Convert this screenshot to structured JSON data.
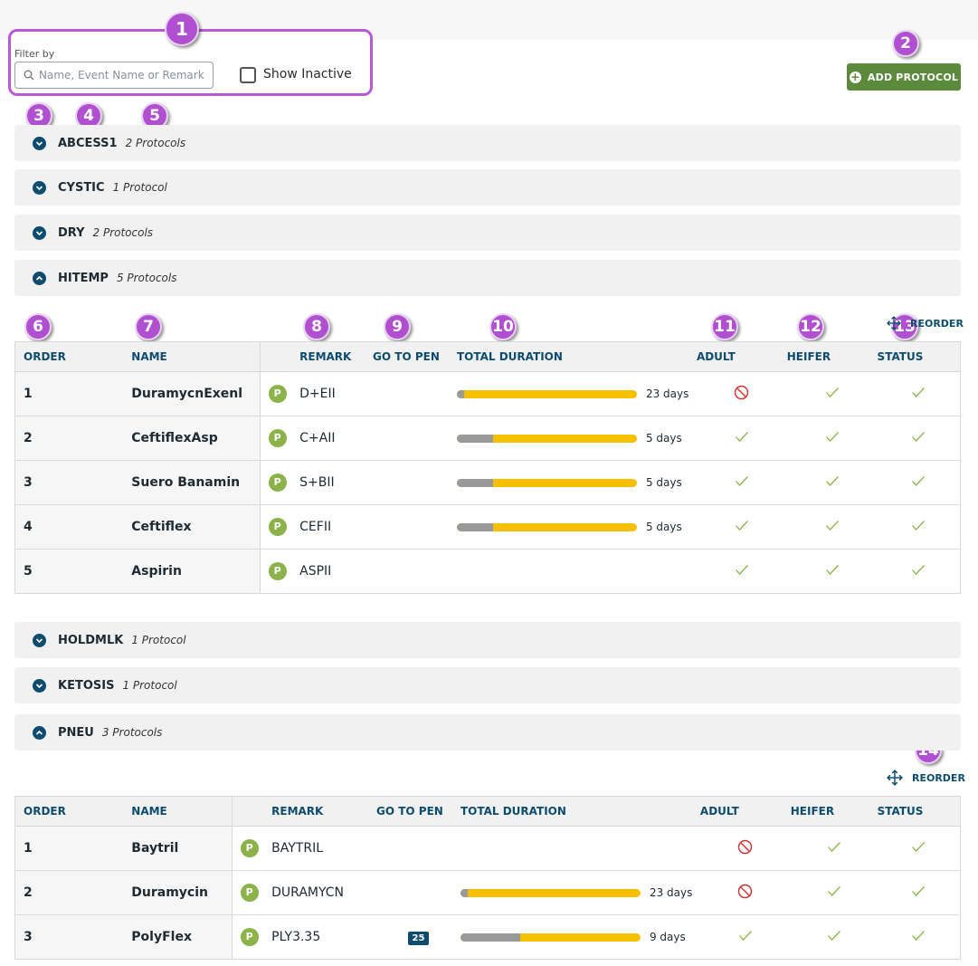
{
  "filter": {
    "label": "Filter by",
    "search_placeholder": "Name, Event Name or Remark",
    "search_value": "",
    "show_inactive_label": "Show Inactive",
    "show_inactive_checked": false
  },
  "add_protocol_label": "ADD PROTOCOL",
  "callouts": [
    "1",
    "2",
    "3",
    "4",
    "5",
    "6",
    "7",
    "8",
    "9",
    "10",
    "11",
    "12",
    "13",
    "14"
  ],
  "groups": [
    {
      "name": "ABCESS1",
      "count": "2 Protocols",
      "expanded": false
    },
    {
      "name": "CYSTIC",
      "count": "1 Protocol",
      "expanded": false
    },
    {
      "name": "DRY",
      "count": "2 Protocols",
      "expanded": false
    },
    {
      "name": "HITEMP",
      "count": "5 Protocols",
      "expanded": true
    },
    {
      "name": "HOLDMLK",
      "count": "1 Protocol",
      "expanded": false
    },
    {
      "name": "KETOSIS",
      "count": "1 Protocol",
      "expanded": false
    },
    {
      "name": "PNEU",
      "count": "3 Protocols",
      "expanded": true
    }
  ],
  "reorder_label": "REORDER",
  "columns": {
    "order": "ORDER",
    "name": "NAME",
    "remark": "REMARK",
    "go_to_pen": "GO TO PEN",
    "total_duration": "TOTAL DURATION",
    "adult": "ADULT",
    "heifer": "HEIFER",
    "status": "STATUS"
  },
  "protocol_chip": "P",
  "hitemp_rows": [
    {
      "order": "1",
      "name": "DuramycnExenl",
      "remark": "D+EII",
      "pen": "",
      "duration": "23 days",
      "grey_fraction": 0.04,
      "adult": "blocked",
      "heifer": "check",
      "status": "check"
    },
    {
      "order": "2",
      "name": "CeftiflexAsp",
      "remark": "C+AII",
      "pen": "",
      "duration": "5 days",
      "grey_fraction": 0.2,
      "adult": "check",
      "heifer": "check",
      "status": "check"
    },
    {
      "order": "3",
      "name": "Suero Banamin",
      "remark": "S+BII",
      "pen": "",
      "duration": "5 days",
      "grey_fraction": 0.2,
      "adult": "check",
      "heifer": "check",
      "status": "check"
    },
    {
      "order": "4",
      "name": "Ceftiflex",
      "remark": "CEFII",
      "pen": "",
      "duration": "5 days",
      "grey_fraction": 0.2,
      "adult": "check",
      "heifer": "check",
      "status": "check"
    },
    {
      "order": "5",
      "name": "Aspirin",
      "remark": "ASPII",
      "pen": "",
      "duration": "",
      "grey_fraction": null,
      "adult": "check",
      "heifer": "check",
      "status": "check"
    }
  ],
  "pneu_rows": [
    {
      "order": "1",
      "name": "Baytril",
      "remark": "BAYTRIL",
      "pen": "",
      "duration": "",
      "grey_fraction": null,
      "adult": "blocked",
      "heifer": "check",
      "status": "check"
    },
    {
      "order": "2",
      "name": "Duramycin",
      "remark": "DURAMYCN",
      "pen": "",
      "duration": "23 days",
      "grey_fraction": 0.04,
      "adult": "blocked",
      "heifer": "check",
      "status": "check"
    },
    {
      "order": "3",
      "name": "PolyFlex",
      "remark": "PLY3.35",
      "pen": "25",
      "duration": "9 days",
      "grey_fraction": 0.33,
      "adult": "check",
      "heifer": "check",
      "status": "check"
    }
  ],
  "colors": {
    "callout": "#b04fd0",
    "accent": "#0d4c6e",
    "add_button": "#5b8a3c",
    "bar_fill": "#f6c000",
    "bar_grey": "#999999",
    "check": "#8bb34a",
    "blocked": "#d0312d"
  }
}
